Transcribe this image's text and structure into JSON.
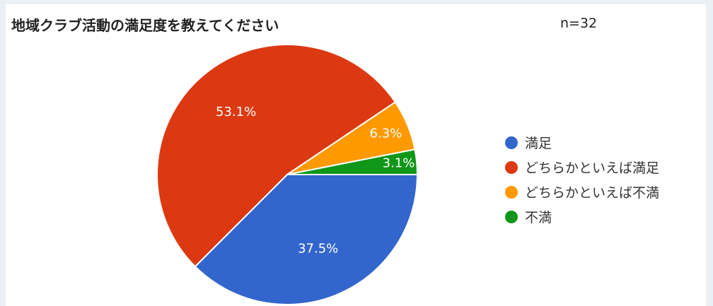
{
  "chart_data": {
    "type": "pie",
    "title": "地域クラブ活動の満足度を教えてください",
    "n_label": "n=32",
    "categories": [
      "満足",
      "どちらかといえば満足",
      "どちらかといえば不満",
      "不満"
    ],
    "values": [
      37.5,
      53.1,
      6.3,
      3.1
    ],
    "value_labels": [
      "37.5%",
      "53.1%",
      "6.3%",
      "3.1%"
    ],
    "colors": [
      "#3366cc",
      "#dc3912",
      "#ff9900",
      "#109618"
    ],
    "legend_position": "right"
  }
}
